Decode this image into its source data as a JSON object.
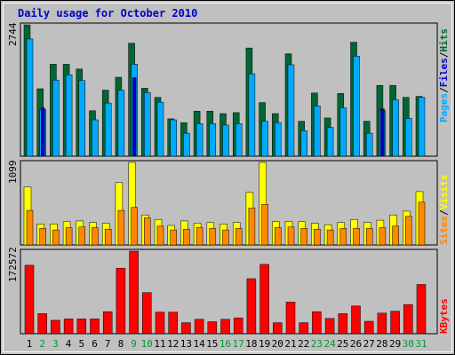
{
  "chart_data": {
    "type": "bar",
    "title": "Daily usage for October 2010",
    "days": [
      "1",
      "2",
      "3",
      "4",
      "5",
      "6",
      "7",
      "8",
      "9",
      "10",
      "11",
      "12",
      "13",
      "14",
      "15",
      "16",
      "17",
      "18",
      "19",
      "20",
      "21",
      "22",
      "23",
      "24",
      "25",
      "26",
      "27",
      "28",
      "29",
      "30",
      "31"
    ],
    "weekend_days": [
      "2",
      "3",
      "9",
      "10",
      "16",
      "17",
      "23",
      "24",
      "30",
      "31"
    ],
    "colors": {
      "hits": "#006633",
      "files": "#00aaff",
      "pages": "#0000cc",
      "visits": "#ffff00",
      "sites": "#ff8800",
      "kbytes": "#ff0000",
      "weekday_label": "#000000",
      "weekend_label": "#009933",
      "plot_bg": "#c0c0c0",
      "frame": "#c0c0c0"
    },
    "panels": [
      {
        "name": "hits-files-pages",
        "y_max_label": "2744",
        "legend": [
          {
            "text": "Pages",
            "color": "#00aaff"
          },
          {
            "text": "/",
            "color": "#000000"
          },
          {
            "text": "Files",
            "color": "#0000cc"
          },
          {
            "text": "/",
            "color": "#000000"
          },
          {
            "text": "Hits",
            "color": "#006633"
          }
        ],
        "series": [
          {
            "name": "Hits",
            "color": "#006633",
            "values": [
              2744,
              1410,
              1920,
              1920,
              1820,
              950,
              1380,
              1650,
              2360,
              1420,
              1230,
              780,
              700,
              940,
              940,
              890,
              910,
              2260,
              1120,
              890,
              2140,
              730,
              1320,
              800,
              1310,
              2380,
              730,
              1480,
              1480,
              1230,
              1250
            ]
          },
          {
            "name": "Files",
            "color": "#00aaff",
            "values": [
              2450,
              970,
              1590,
              1700,
              1580,
              760,
              1110,
              1380,
              1920,
              1330,
              1130,
              760,
              480,
              680,
              680,
              650,
              680,
              1720,
              730,
              700,
              1910,
              530,
              1050,
              600,
              1010,
              2090,
              480,
              950,
              1180,
              790,
              1230
            ]
          },
          {
            "name": "Pages",
            "color": "#0000cc",
            "values": [
              0,
              1010,
              0,
              0,
              0,
              0,
              0,
              0,
              1640,
              0,
              0,
              0,
              0,
              0,
              0,
              0,
              0,
              0,
              0,
              0,
              0,
              0,
              0,
              0,
              0,
              0,
              0,
              990,
              0,
              0,
              0
            ]
          }
        ]
      },
      {
        "name": "visits-sites",
        "y_max_label": "1099",
        "legend": [
          {
            "text": "Sites",
            "color": "#ff8800"
          },
          {
            "text": "/",
            "color": "#000000"
          },
          {
            "text": "Visits",
            "color": "#ffff00"
          }
        ],
        "series": [
          {
            "name": "Visits",
            "color": "#ffff00",
            "values": [
              770,
              280,
              280,
              310,
              320,
              300,
              290,
              830,
              1099,
              400,
              340,
              260,
              320,
              290,
              300,
              280,
              300,
              700,
              1099,
              310,
              310,
              310,
              290,
              270,
              300,
              340,
              300,
              330,
              400,
              450,
              710
            ]
          },
          {
            "name": "Sites",
            "color": "#ff8800",
            "values": [
              460,
              220,
              200,
              230,
              240,
              230,
              210,
              460,
              500,
              360,
              250,
              200,
              210,
              230,
              220,
              200,
              220,
              490,
              540,
              230,
              240,
              220,
              210,
              200,
              220,
              220,
              220,
              230,
              250,
              380,
              570
            ]
          }
        ]
      },
      {
        "name": "kbytes",
        "y_max_label": "172572",
        "legend": [
          {
            "text": "KBytes",
            "color": "#ff0000"
          }
        ],
        "series": [
          {
            "name": "KBytes",
            "color": "#ff0000",
            "values": [
              143000,
              42000,
              28000,
              31000,
              31000,
              31000,
              46000,
              137000,
              172572,
              86000,
              45000,
              45000,
              23000,
              30000,
              25000,
              30000,
              33000,
              115000,
              145000,
              23000,
              66000,
              23000,
              46000,
              32000,
              42000,
              58000,
              26000,
              43000,
              47000,
              61000,
              103000
            ]
          }
        ]
      }
    ]
  }
}
